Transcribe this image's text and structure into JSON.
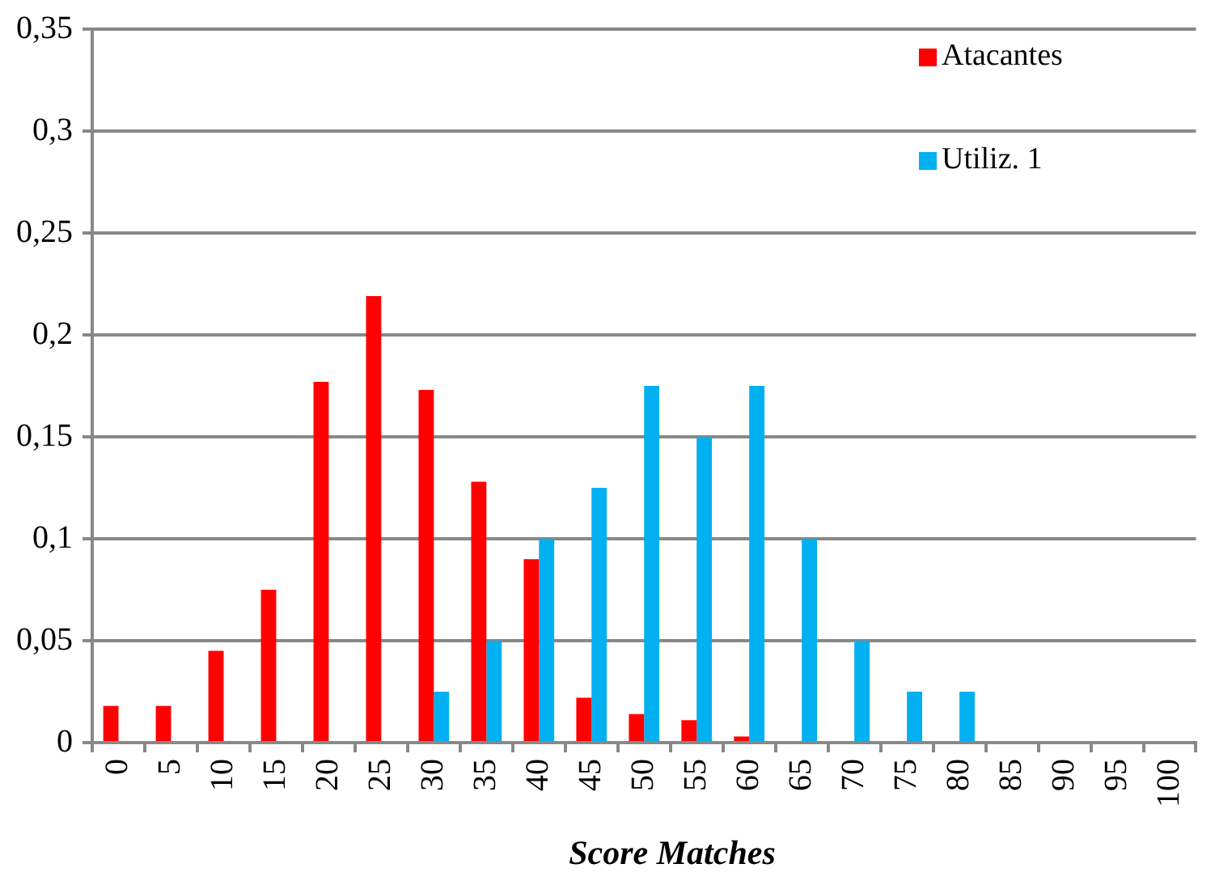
{
  "chart_data": {
    "type": "bar",
    "xlabel": "Score Matches",
    "categories": [
      "0",
      "5",
      "10",
      "15",
      "20",
      "25",
      "30",
      "35",
      "40",
      "45",
      "50",
      "55",
      "60",
      "65",
      "70",
      "75",
      "80",
      "85",
      "90",
      "95",
      "100"
    ],
    "series": [
      {
        "name": "Atacantes",
        "color": "#ff0000",
        "values": [
          0.018,
          0.018,
          0.045,
          0.075,
          0.177,
          0.219,
          0.173,
          0.128,
          0.09,
          0.022,
          0.014,
          0.011,
          0.003,
          0,
          0,
          0,
          0,
          0,
          0,
          0,
          0
        ]
      },
      {
        "name": "Utiliz. 1",
        "color": "#00b0f0",
        "values": [
          0,
          0,
          0,
          0,
          0,
          0,
          0.025,
          0.05,
          0.1,
          0.125,
          0.175,
          0.15,
          0.175,
          0.1,
          0.05,
          0.025,
          0.025,
          0,
          0,
          0,
          0
        ]
      }
    ],
    "ylim": [
      0,
      0.35
    ],
    "yticks": [
      {
        "value": 0,
        "label": "0"
      },
      {
        "value": 0.05,
        "label": "0,05"
      },
      {
        "value": 0.1,
        "label": "0,1"
      },
      {
        "value": 0.15,
        "label": "0,15"
      },
      {
        "value": 0.2,
        "label": "0,2"
      },
      {
        "value": 0.25,
        "label": "0,25"
      },
      {
        "value": 0.3,
        "label": "0,3"
      },
      {
        "value": 0.35,
        "label": "0,35"
      }
    ],
    "grid": "y",
    "legend": "top right"
  }
}
